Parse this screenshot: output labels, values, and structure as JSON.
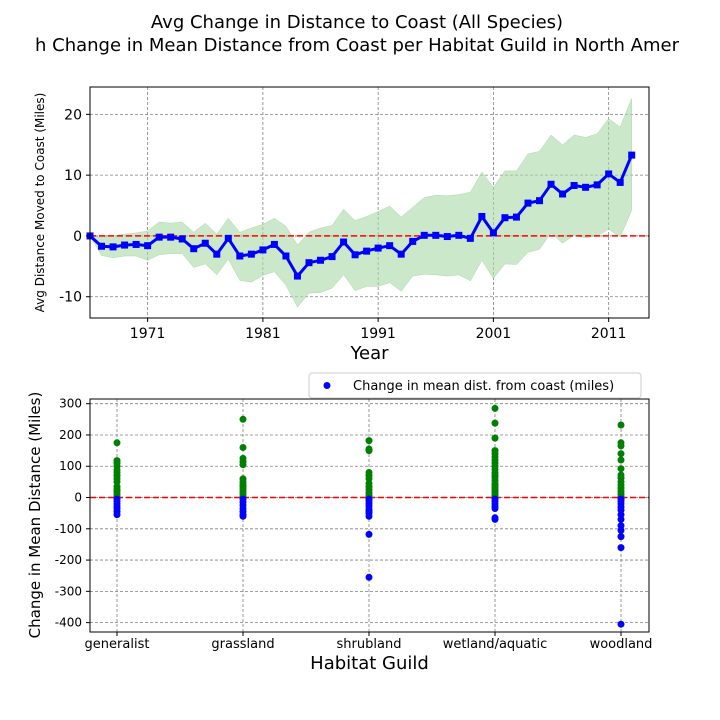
{
  "figure": {
    "title_line1": "Avg Change in Distance to Coast (All Species)",
    "title_line2": "h Change in Mean Distance from Coast per Habitat Guild in North Amer"
  },
  "chart_data": [
    {
      "type": "line",
      "xlabel": "Year",
      "ylabel": "Avg Distance Moved to Coast (Miles)",
      "xlim": [
        1966,
        2014.5
      ],
      "ylim": [
        -13.5,
        24.5
      ],
      "xticks": [
        1971,
        1981,
        1991,
        2001,
        2011
      ],
      "yticks": [
        -10,
        0,
        10,
        20
      ],
      "grid": true,
      "reference_line": 0,
      "line_color": "#0000ff",
      "band_color": "#a9d9a9",
      "ref_color": "#ff0000",
      "series": [
        {
          "x": [
            1966,
            1967,
            1968,
            1969,
            1970,
            1971,
            1972,
            1973,
            1974,
            1975,
            1976,
            1977,
            1978,
            1979,
            1980,
            1981,
            1982,
            1983,
            1984,
            1985,
            1986,
            1987,
            1988,
            1989,
            1990,
            1991,
            1992,
            1993,
            1994,
            1995,
            1996,
            1997,
            1998,
            1999,
            2000,
            2001,
            2002,
            2003,
            2004,
            2005,
            2006,
            2007,
            2008,
            2009,
            2010,
            2011,
            2012,
            2013
          ],
          "values": [
            0,
            -1.7,
            -1.8,
            -1.5,
            -1.4,
            -1.6,
            -0.2,
            -0.2,
            -0.5,
            -2.1,
            -1.2,
            -3.0,
            -0.4,
            -3.3,
            -3.0,
            -2.3,
            -1.4,
            -3.3,
            -6.6,
            -4.4,
            -4.0,
            -3.4,
            -1.0,
            -3.1,
            -2.5,
            -2.0,
            -1.6,
            -3.0,
            -0.9,
            0.1,
            0.1,
            -0.1,
            0.1,
            -0.4,
            3.2,
            0.5,
            3.0,
            3.1,
            5.4,
            5.8,
            8.5,
            6.9,
            8.3,
            8.0,
            8.4,
            10.2,
            8.8,
            13.3
          ],
          "lower": [
            0,
            -3.2,
            -3.6,
            -3.3,
            -3.3,
            -4.0,
            -3.1,
            -2.9,
            -2.9,
            -5.2,
            -4.6,
            -6.4,
            -3.8,
            -7.3,
            -7.6,
            -6.5,
            -5.9,
            -8.1,
            -11.7,
            -9.4,
            -9.3,
            -8.6,
            -6.4,
            -9.0,
            -8.3,
            -8.3,
            -7.7,
            -9.1,
            -6.6,
            -6.3,
            -6.4,
            -6.6,
            -6.4,
            -7.4,
            -4.0,
            -7.0,
            -4.6,
            -4.7,
            -2.7,
            -2.2,
            0.5,
            -1.2,
            0.1,
            -0.3,
            0.0,
            1.1,
            -0.2,
            4.2
          ],
          "upper": [
            0,
            -0.2,
            0.0,
            0.3,
            0.5,
            0.8,
            2.3,
            2.1,
            2.3,
            0.6,
            2.1,
            0.3,
            2.9,
            0.6,
            1.3,
            1.9,
            2.9,
            1.6,
            -1.5,
            0.6,
            1.3,
            1.7,
            4.4,
            2.5,
            3.2,
            4.0,
            4.9,
            3.1,
            4.7,
            6.3,
            6.7,
            6.6,
            6.8,
            7.2,
            10.5,
            8.0,
            10.7,
            10.7,
            13.5,
            13.9,
            16.6,
            15.0,
            16.6,
            16.2,
            16.8,
            19.3,
            17.9,
            22.6
          ]
        }
      ]
    },
    {
      "type": "scatter",
      "xlabel": "Habitat Guild",
      "ylabel": "Change in Mean Distance (Miles)",
      "categories": [
        "generalist",
        "grassland",
        "shrubland",
        "wetland/aquatic",
        "woodland"
      ],
      "ylim": [
        -430,
        315
      ],
      "yticks": [
        -400,
        -300,
        -200,
        -100,
        0,
        100,
        200,
        300
      ],
      "grid": true,
      "reference_line": 0,
      "legend": "top-right",
      "legend_label": "Change in mean dist. from coast (miles)",
      "positive_color": "#008000",
      "negative_color": "#0000ff",
      "ref_color": "#ff0000",
      "points": [
        [
          175,
          118,
          110,
          100,
          88,
          80,
          70,
          60,
          50,
          35,
          25,
          20,
          12,
          5,
          -5,
          -12,
          -20,
          -28,
          -35,
          -45,
          -55
        ],
        [
          250,
          160,
          125,
          115,
          105,
          60,
          50,
          42,
          35,
          28,
          20,
          12,
          5,
          -5,
          -15,
          -25,
          -35,
          -45,
          -55,
          -60
        ],
        [
          182,
          155,
          150,
          80,
          70,
          60,
          45,
          35,
          25,
          15,
          8,
          3,
          -5,
          -12,
          -20,
          -28,
          -38,
          -45,
          -50,
          -60,
          -118,
          -255
        ],
        [
          285,
          238,
          190,
          150,
          140,
          130,
          120,
          110,
          100,
          90,
          80,
          72,
          65,
          55,
          45,
          38,
          30,
          22,
          15,
          8,
          3,
          -5,
          -12,
          -20,
          -28,
          -35,
          -65,
          -70
        ],
        [
          232,
          175,
          165,
          140,
          120,
          92,
          72,
          62,
          50,
          40,
          30,
          20,
          12,
          5,
          -5,
          -12,
          -20,
          -30,
          -40,
          -55,
          -70,
          -90,
          -105,
          -125,
          -160,
          -405
        ]
      ]
    }
  ]
}
